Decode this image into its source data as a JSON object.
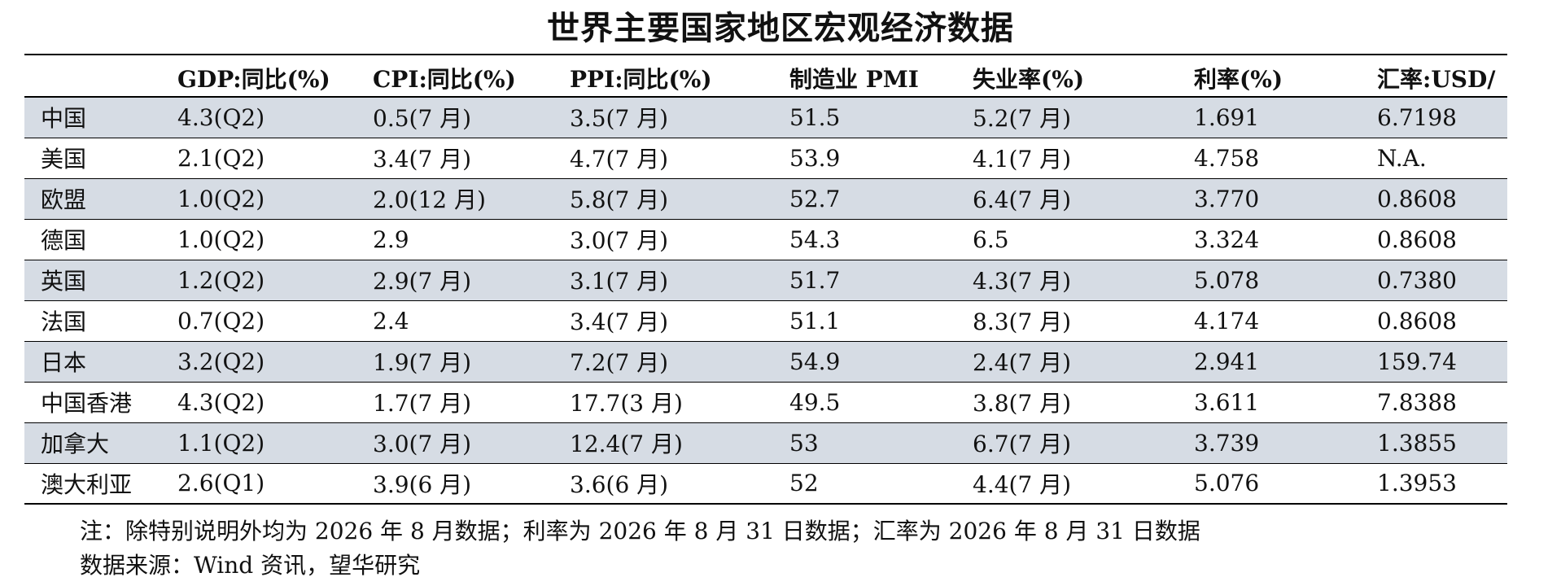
{
  "title": "世界主要国家地区宏观经济数据",
  "headers": [
    "",
    "GDP:同比(%)",
    "CPI:同比(%)",
    "PPI:同比(%)",
    "制造业 PMI",
    "失业率(%)",
    "利率(%)",
    "汇率:USD/"
  ],
  "rows": [
    [
      "中国",
      "4.3(Q2)",
      "0.5(7 月)",
      "3.5(7 月)",
      "51.5",
      "5.2(7 月)",
      "1.691",
      "6.7198"
    ],
    [
      "美国",
      "2.1(Q2)",
      "3.4(7 月)",
      "4.7(7 月)",
      "53.9",
      "4.1(7 月)",
      "4.758",
      "N.A."
    ],
    [
      "欧盟",
      "1.0(Q2)",
      "2.0(12 月)",
      "5.8(7 月)",
      "52.7",
      "6.4(7 月)",
      "3.770",
      "0.8608"
    ],
    [
      "德国",
      "1.0(Q2)",
      "2.9",
      "3.0(7 月)",
      "54.3",
      "6.5",
      "3.324",
      "0.8608"
    ],
    [
      "英国",
      "1.2(Q2)",
      "2.9(7 月)",
      "3.1(7 月)",
      "51.7",
      "4.3(7 月)",
      "5.078",
      "0.7380"
    ],
    [
      "法国",
      "0.7(Q2)",
      "2.4",
      "3.4(7 月)",
      "51.1",
      "8.3(7 月)",
      "4.174",
      "0.8608"
    ],
    [
      "日本",
      "3.2(Q2)",
      "1.9(7 月)",
      "7.2(7 月)",
      "54.9",
      "2.4(7 月)",
      "2.941",
      "159.74"
    ],
    [
      "中国香港",
      "4.3(Q2)",
      "1.7(7 月)",
      "17.7(3 月)",
      "49.5",
      "3.8(7 月)",
      "3.611",
      "7.8388"
    ],
    [
      "加拿大",
      "1.1(Q2)",
      "3.0(7 月)",
      "12.4(7 月)",
      "53",
      "6.7(7 月)",
      "3.739",
      "1.3855"
    ],
    [
      "澳大利亚",
      "2.6(Q1)",
      "3.9(6 月)",
      "3.6(6 月)",
      "52",
      "4.4(7 月)",
      "5.076",
      "1.3953"
    ]
  ],
  "shaded_row_color": "#d6dce4",
  "notes": {
    "line1": "注：除特别说明外均为 2026 年 8 月数据；利率为 2026 年 8 月 31 日数据；汇率为 2026 年 8 月 31 日数据",
    "line2": "数据来源：Wind 资讯，望华研究"
  }
}
